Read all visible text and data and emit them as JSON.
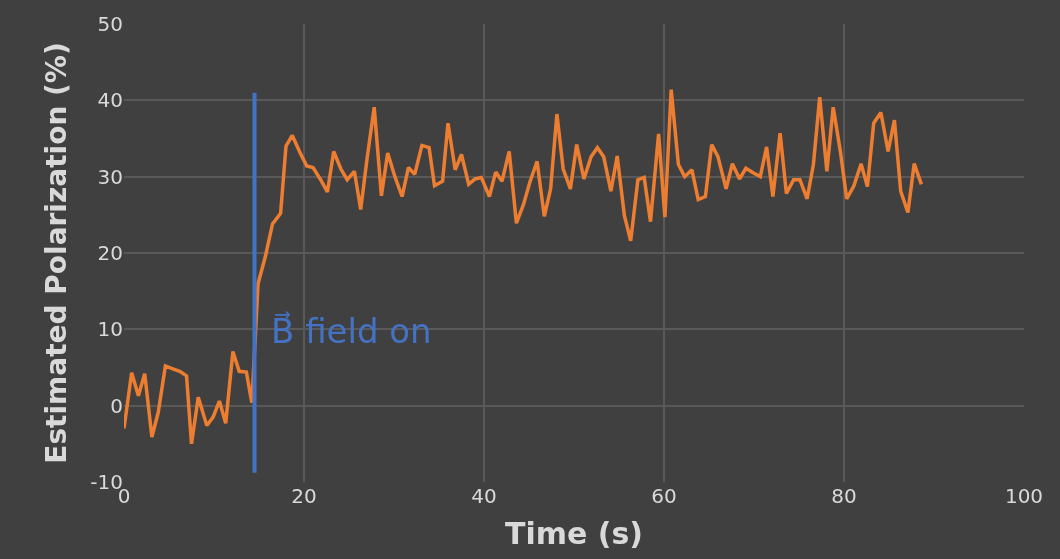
{
  "chart_data": {
    "type": "line",
    "xlabel": "Time (s)",
    "ylabel": "Estimated Polarization (%)",
    "x": [
      0,
      0.85,
      1.6,
      2.3,
      3.1,
      3.8,
      4.6,
      5.5,
      6.2,
      6.95,
      7.5,
      8.25,
      9.2,
      9.9,
      10.6,
      11.3,
      12.1,
      12.8,
      13.6,
      14.2,
      14.9,
      15.7,
      16.5,
      17.4,
      18.0,
      18.7,
      19.5,
      20.3,
      21.0,
      21.8,
      22.6,
      23.3,
      24.1,
      24.8,
      25.6,
      26.3,
      27.0,
      27.8,
      28.6,
      29.3,
      30.1,
      30.9,
      31.6,
      32.3,
      33.1,
      33.9,
      34.5,
      35.4,
      36.0,
      36.8,
      37.5,
      38.3,
      39.0,
      39.7,
      40.6,
      41.3,
      42.0,
      42.8,
      43.6,
      44.4,
      45.1,
      45.9,
      46.7,
      47.4,
      48.1,
      48.8,
      49.6,
      50.3,
      51.1,
      51.9,
      52.6,
      53.3,
      54.1,
      54.8,
      55.6,
      56.3,
      57.1,
      57.8,
      58.5,
      59.4,
      60.1,
      60.8,
      61.6,
      62.3,
      63.1,
      63.8,
      64.6,
      65.3,
      66.0,
      66.9,
      67.6,
      68.4,
      69.1,
      69.9,
      70.7,
      71.4,
      72.1,
      72.9,
      73.6,
      74.4,
      75.1,
      75.9,
      76.6,
      77.3,
      78.1,
      78.8,
      79.6,
      80.3,
      81.1,
      81.9,
      82.6,
      83.3,
      84.1,
      84.9,
      85.6,
      86.3,
      87.1,
      87.8,
      88.6
    ],
    "series": [
      {
        "color": "#ed7d31",
        "values": [
          -3,
          4.3,
          1.3,
          4.2,
          -4.1,
          -0.9,
          5.2,
          4.8,
          4.5,
          3.9,
          -5.0,
          1.1,
          -2.6,
          -1.5,
          0.6,
          -2.3,
          7.1,
          4.5,
          4.4,
          0.4,
          16.0,
          19.5,
          23.8,
          25.2,
          34.0,
          35.4,
          33.3,
          31.4,
          31.2,
          29.7,
          28.0,
          33.3,
          31.0,
          29.6,
          30.7,
          25.7,
          32.3,
          39.1,
          27.5,
          33.1,
          30.0,
          27.4,
          31.2,
          30.3,
          34.1,
          33.8,
          28.8,
          29.4,
          37.0,
          30.9,
          32.9,
          29.0,
          29.7,
          29.9,
          27.4,
          30.6,
          29.4,
          33.3,
          23.9,
          26.4,
          29.3,
          32.0,
          24.8,
          28.4,
          38.2,
          31.0,
          28.4,
          34.2,
          29.7,
          32.6,
          33.8,
          32.6,
          28.1,
          32.7,
          24.9,
          21.6,
          29.6,
          29.9,
          24.1,
          35.6,
          24.7,
          41.4,
          31.6,
          30.0,
          30.9,
          27.0,
          27.4,
          34.2,
          32.6,
          28.4,
          31.7,
          29.7,
          31.1,
          30.5,
          30.0,
          33.9,
          27.4,
          35.7,
          27.8,
          29.6,
          29.6,
          27.1,
          31.6,
          40.4,
          30.7,
          39.1,
          33.3,
          27.1,
          28.8,
          31.7,
          28.7,
          37.0,
          38.4,
          33.3,
          37.4,
          28.1,
          25.3,
          31.7,
          29.0
        ]
      }
    ],
    "xlim": [
      0,
      100
    ],
    "xticks": [
      0,
      20,
      40,
      60,
      80,
      100
    ],
    "ylim": [
      -10,
      50
    ],
    "yticks": [
      -10,
      0,
      10,
      20,
      30,
      40,
      50
    ],
    "grid": true,
    "marker": "none",
    "line_style": "solid",
    "ref_lines": [
      {
        "axis": "x",
        "value": 14.5,
        "label": "B⃗ field on",
        "color": "#4472c4",
        "line_style": "solid"
      }
    ]
  }
}
